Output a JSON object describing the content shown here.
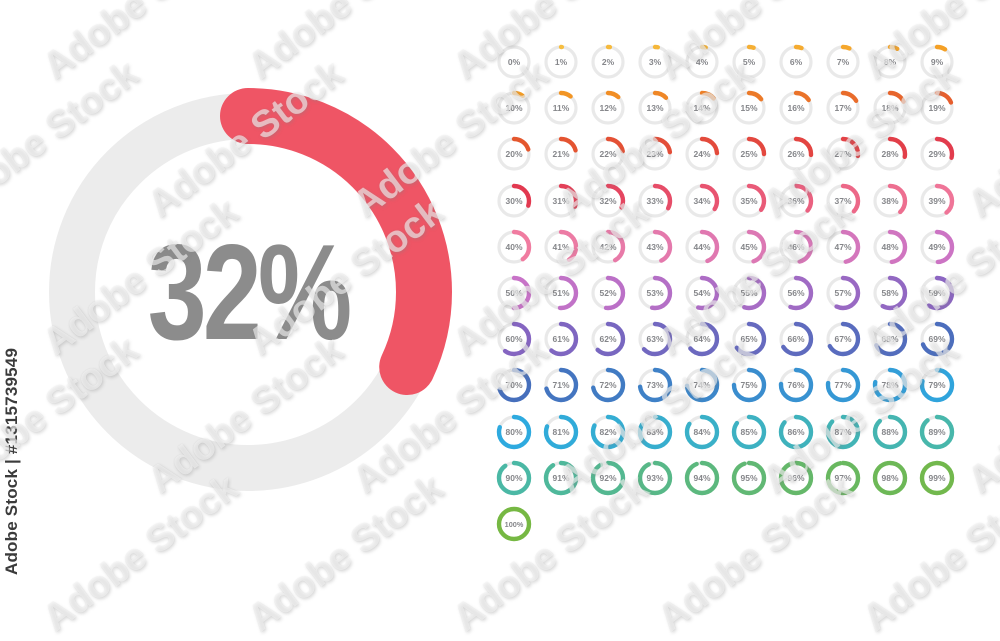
{
  "page": {
    "background": "#FFFFFF"
  },
  "hero": {
    "percent": 32,
    "label": "32%",
    "arc_color": "#EF5565",
    "track_color": "#ECECEC",
    "label_color": "#8C8C8C"
  },
  "grid": {
    "values": [
      0,
      1,
      2,
      3,
      4,
      5,
      6,
      7,
      8,
      9,
      10,
      11,
      12,
      13,
      14,
      15,
      16,
      17,
      18,
      19,
      20,
      21,
      22,
      23,
      24,
      25,
      26,
      27,
      28,
      29,
      30,
      31,
      32,
      33,
      34,
      35,
      36,
      37,
      38,
      39,
      40,
      41,
      42,
      43,
      44,
      45,
      46,
      47,
      48,
      49,
      50,
      51,
      52,
      53,
      54,
      55,
      56,
      57,
      58,
      59,
      60,
      61,
      62,
      63,
      64,
      65,
      66,
      67,
      68,
      69,
      70,
      71,
      72,
      73,
      74,
      75,
      76,
      77,
      78,
      79,
      80,
      81,
      82,
      83,
      84,
      85,
      86,
      87,
      88,
      89,
      90,
      91,
      92,
      93,
      94,
      95,
      96,
      97,
      98,
      99,
      100
    ],
    "label_suffix": "%",
    "track_color": "#E9E9E9",
    "label_color": "#85868A",
    "color_stops": [
      {
        "p": 0,
        "c": "#F6C244"
      },
      {
        "p": 10,
        "c": "#F49C23"
      },
      {
        "p": 20,
        "c": "#E4572E"
      },
      {
        "p": 30,
        "c": "#E23950"
      },
      {
        "p": 40,
        "c": "#F07CA0"
      },
      {
        "p": 50,
        "c": "#C873C8"
      },
      {
        "p": 60,
        "c": "#8565C1"
      },
      {
        "p": 70,
        "c": "#466FBC"
      },
      {
        "p": 80,
        "c": "#2EAADF"
      },
      {
        "p": 90,
        "c": "#4BB8A5"
      },
      {
        "p": 100,
        "c": "#76B843"
      }
    ]
  },
  "watermark": {
    "text": "Adobe Stock",
    "credit": "Adobe Stock | #1315739549",
    "credit_color": "#3B3B3B"
  }
}
